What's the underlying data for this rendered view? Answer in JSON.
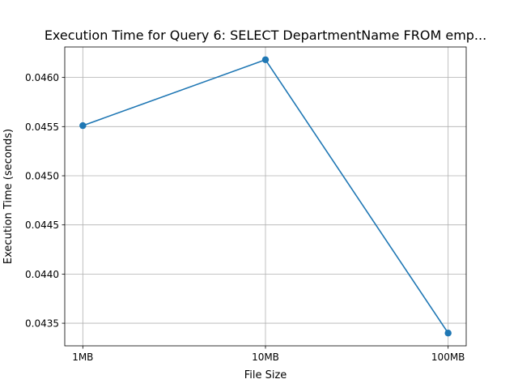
{
  "chart_data": {
    "type": "line",
    "title": "Execution Time for Query 6: SELECT DepartmentName FROM emp...",
    "xlabel": "File Size",
    "ylabel": "Execution Time (seconds)",
    "categories": [
      "1MB",
      "10MB",
      "100MB"
    ],
    "series": [
      {
        "values": [
          0.04551,
          0.04618,
          0.0434
        ],
        "color": "#1f77b4",
        "marker": "circle"
      }
    ],
    "ylim": [
      0.04327,
      0.04631
    ],
    "yticks": [
      0.0435,
      0.044,
      0.0445,
      0.045,
      0.0455,
      0.046
    ],
    "ytick_labels": [
      "0.0435",
      "0.0440",
      "0.0445",
      "0.0450",
      "0.0455",
      "0.0460"
    ],
    "grid": true,
    "legend": null
  }
}
